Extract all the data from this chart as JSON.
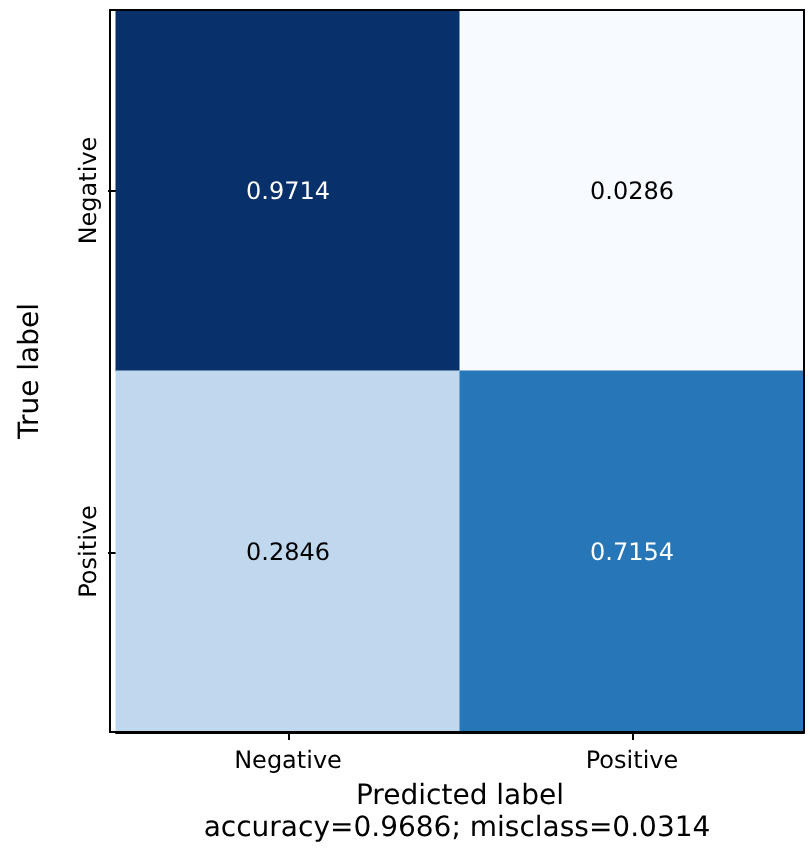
{
  "chart_data": {
    "type": "heatmap",
    "xlabel": "Predicted label",
    "ylabel": "True label",
    "annotations": [
      "accuracy=0.9686; misclass=0.0314"
    ],
    "categories": [
      "Negative",
      "Positive"
    ],
    "y_categories": [
      "Negative",
      "Positive"
    ],
    "cells": [
      [
        0.9714,
        0.0286
      ],
      [
        0.2846,
        0.7154
      ]
    ],
    "data_labels": true
  }
}
